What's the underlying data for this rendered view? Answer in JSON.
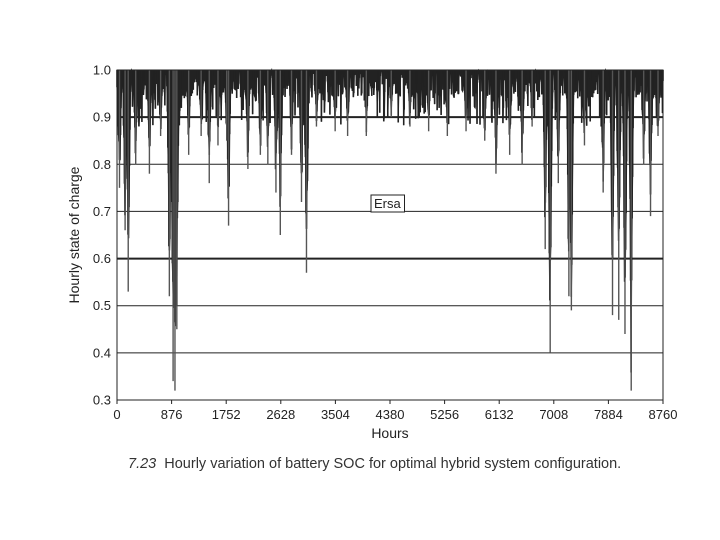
{
  "chart_data": {
    "type": "line",
    "xlabel": "Hours",
    "ylabel": "Hourly state of charge",
    "xlim": [
      0,
      8760
    ],
    "ylim": [
      0.3,
      1.0
    ],
    "x_ticks": [
      0,
      876,
      1752,
      2628,
      3504,
      4380,
      5256,
      6132,
      7008,
      7884,
      8760
    ],
    "y_ticks": [
      "0.3",
      "0.4",
      "0.5",
      "0.6",
      "0.7",
      "0.8",
      "0.9",
      "1.0"
    ],
    "grid": "horizontal",
    "reference_lines": [
      0.9,
      0.6
    ],
    "annotation": "Ersa",
    "series": [
      {
        "values_description_free": true,
        "color": "#222222",
        "minima": [
          {
            "x": 40,
            "y": 0.75
          },
          {
            "x": 130,
            "y": 0.66
          },
          {
            "x": 180,
            "y": 0.53
          },
          {
            "x": 300,
            "y": 0.8
          },
          {
            "x": 520,
            "y": 0.78
          },
          {
            "x": 700,
            "y": 0.86
          },
          {
            "x": 840,
            "y": 0.52
          },
          {
            "x": 900,
            "y": 0.34
          },
          {
            "x": 930,
            "y": 0.32
          },
          {
            "x": 960,
            "y": 0.45
          },
          {
            "x": 1150,
            "y": 0.82
          },
          {
            "x": 1350,
            "y": 0.86
          },
          {
            "x": 1480,
            "y": 0.76
          },
          {
            "x": 1620,
            "y": 0.84
          },
          {
            "x": 1760,
            "y": 0.85
          },
          {
            "x": 1790,
            "y": 0.67
          },
          {
            "x": 2100,
            "y": 0.79
          },
          {
            "x": 2300,
            "y": 0.82
          },
          {
            "x": 2420,
            "y": 0.8
          },
          {
            "x": 2550,
            "y": 0.74
          },
          {
            "x": 2620,
            "y": 0.65
          },
          {
            "x": 2800,
            "y": 0.82
          },
          {
            "x": 2960,
            "y": 0.72
          },
          {
            "x": 3040,
            "y": 0.57
          },
          {
            "x": 3200,
            "y": 0.88
          },
          {
            "x": 3500,
            "y": 0.87
          },
          {
            "x": 3700,
            "y": 0.86
          },
          {
            "x": 4000,
            "y": 0.86
          },
          {
            "x": 4400,
            "y": 0.9
          },
          {
            "x": 4700,
            "y": 0.88
          },
          {
            "x": 5000,
            "y": 0.87
          },
          {
            "x": 5300,
            "y": 0.86
          },
          {
            "x": 5600,
            "y": 0.87
          },
          {
            "x": 5900,
            "y": 0.85
          },
          {
            "x": 6080,
            "y": 0.78
          },
          {
            "x": 6300,
            "y": 0.82
          },
          {
            "x": 6500,
            "y": 0.8
          },
          {
            "x": 6660,
            "y": 0.88
          },
          {
            "x": 6870,
            "y": 0.62
          },
          {
            "x": 6950,
            "y": 0.4
          },
          {
            "x": 7080,
            "y": 0.76
          },
          {
            "x": 7250,
            "y": 0.52
          },
          {
            "x": 7290,
            "y": 0.49
          },
          {
            "x": 7500,
            "y": 0.84
          },
          {
            "x": 7800,
            "y": 0.74
          },
          {
            "x": 7950,
            "y": 0.48
          },
          {
            "x": 8050,
            "y": 0.47
          },
          {
            "x": 8150,
            "y": 0.44
          },
          {
            "x": 8250,
            "y": 0.32
          },
          {
            "x": 8450,
            "y": 0.8
          },
          {
            "x": 8560,
            "y": 0.69
          },
          {
            "x": 8680,
            "y": 0.86
          }
        ]
      }
    ]
  },
  "caption": {
    "figure_number": "7.23",
    "text": "Hourly variation of battery SOC for optimal hybrid system configuration."
  }
}
